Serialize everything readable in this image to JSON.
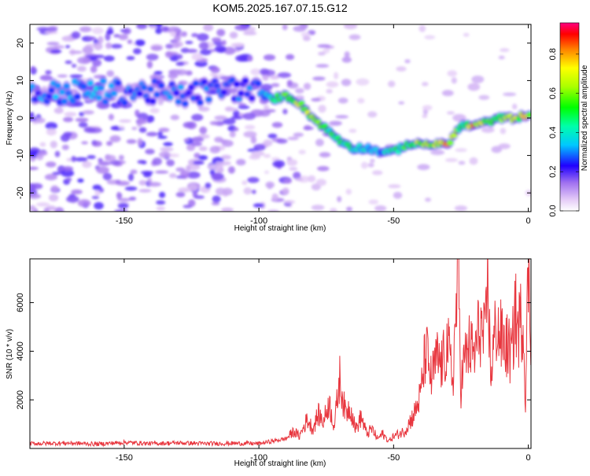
{
  "title": "KOM5.2025.167.07.15.G12",
  "chart_data": [
    {
      "type": "heatmap",
      "xlabel": "Height of straight line (km)",
      "ylabel": "Frequency (Hz)",
      "xlim": [
        -185,
        1
      ],
      "ylim": [
        -25,
        25
      ],
      "xticks": [
        -150,
        -100,
        -50,
        0
      ],
      "yticks": [
        -20,
        -10,
        0,
        10,
        20
      ],
      "colorbar": {
        "label": "Normalized spectral amplitude",
        "range": [
          0,
          0.96
        ],
        "ticks": [
          0.0,
          0.2,
          0.4,
          0.6,
          0.8
        ],
        "tick_labels": [
          "0.0",
          "0.2",
          "0.4",
          "0.6",
          "0.8"
        ]
      },
      "ridge": {
        "x": [
          -185,
          -170,
          -160,
          -150,
          -140,
          -130,
          -120,
          -110,
          -100,
          -95,
          -90,
          -85,
          -80,
          -75,
          -70,
          -65,
          -60,
          -55,
          -50,
          -45,
          -40,
          -35,
          -30,
          -25,
          -20,
          -15,
          -10,
          -5,
          0
        ],
        "frequency": [
          6,
          7,
          7,
          7,
          7,
          6,
          7,
          8,
          7,
          5,
          6,
          4,
          0,
          -3,
          -6,
          -8,
          -8,
          -9,
          -9,
          -7,
          -7,
          -7,
          -7,
          -2,
          -2,
          -1,
          0,
          0,
          1
        ],
        "amplitude": [
          0.3,
          0.35,
          0.35,
          0.3,
          0.3,
          0.3,
          0.3,
          0.3,
          0.3,
          0.5,
          0.6,
          0.7,
          0.65,
          0.55,
          0.5,
          0.45,
          0.4,
          0.35,
          0.5,
          0.55,
          0.7,
          0.75,
          0.9,
          0.5,
          0.85,
          0.55,
          0.6,
          0.7,
          0.75
        ]
      }
    },
    {
      "type": "line",
      "xlabel": "Height of straight line (km)",
      "ylabel": "SNR (10 * v/v)",
      "xlim": [
        -185,
        1
      ],
      "ylim": [
        0,
        7800
      ],
      "xticks": [
        -150,
        -100,
        -50,
        0
      ],
      "yticks": [
        2000,
        4000,
        6000
      ],
      "series": [
        {
          "color": "#e8373f",
          "x": [
            -185,
            -170,
            -160,
            -150,
            -140,
            -130,
            -120,
            -110,
            -100,
            -95,
            -90,
            -87,
            -85,
            -82,
            -80,
            -78,
            -76,
            -74,
            -72,
            -70,
            -68,
            -66,
            -64,
            -62,
            -60,
            -58,
            -56,
            -54,
            -52,
            -50,
            -48,
            -46,
            -44,
            -42,
            -40,
            -38,
            -36,
            -34,
            -32,
            -30,
            -28,
            -26,
            -25,
            -24,
            -22,
            -20,
            -18,
            -16,
            -15,
            -14,
            -12,
            -10,
            -8,
            -6,
            -5,
            -4,
            -2,
            -1,
            0,
            1
          ],
          "y": [
            200,
            220,
            180,
            250,
            200,
            230,
            200,
            210,
            200,
            300,
            400,
            700,
            500,
            1200,
            800,
            1400,
            1100,
            1900,
            900,
            2900,
            1500,
            1700,
            800,
            1300,
            600,
            800,
            400,
            600,
            300,
            500,
            600,
            700,
            1100,
            1500,
            2200,
            4100,
            2800,
            3700,
            3400,
            4300,
            2800,
            7700,
            2500,
            3500,
            4200,
            3800,
            5100,
            4300,
            7200,
            3000,
            5100,
            4500,
            4200,
            3800,
            5800,
            4800,
            5500,
            2000,
            7800,
            4000
          ]
        }
      ]
    }
  ]
}
